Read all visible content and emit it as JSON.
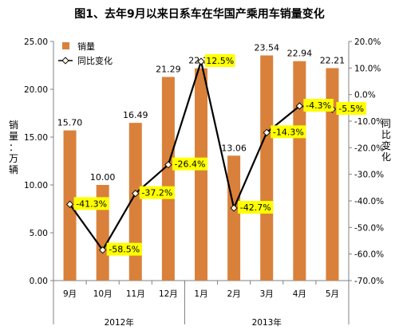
{
  "chart_data": {
    "type": "bar+line",
    "title": "图1、去年9月以来日系车在华国产乘用车销量变化",
    "categories": [
      "9月",
      "10月",
      "11月",
      "12月",
      "1月",
      "2月",
      "3月",
      "4月",
      "5月"
    ],
    "year_groups": [
      {
        "label": "2012年",
        "categories": [
          "9月",
          "10月",
          "11月",
          "12月"
        ]
      },
      {
        "label": "2013年",
        "categories": [
          "1月",
          "2月",
          "3月",
          "4月",
          "5月"
        ]
      }
    ],
    "series": [
      {
        "name": "销量",
        "type": "bar",
        "axis": "left",
        "color": "#d9813b",
        "values": [
          15.7,
          10.0,
          16.49,
          21.29,
          22.19,
          13.06,
          23.54,
          22.94,
          22.21
        ],
        "labels": [
          "15.70",
          "10.00",
          "16.49",
          "21.29",
          "22.19",
          "13.06",
          "23.54",
          "22.94",
          "22.21"
        ]
      },
      {
        "name": "同比变化",
        "type": "line",
        "axis": "right",
        "color": "#000000",
        "values": [
          -41.3,
          -58.5,
          -37.2,
          -26.4,
          12.5,
          -42.7,
          -14.3,
          -4.3,
          -5.5
        ],
        "labels": [
          "-41.3%",
          "-58.5%",
          "-37.2%",
          "-26.4%",
          "12.5%",
          "-42.7%",
          "-14.3%",
          "-4.3%",
          "-5.5%"
        ],
        "label_bg": "#ffff00"
      }
    ],
    "y_left": {
      "label": "销量：万辆",
      "range": [
        0,
        25
      ],
      "ticks": [
        "0.00",
        "5.00",
        "10.00",
        "15.00",
        "20.00",
        "25.00"
      ]
    },
    "y_right": {
      "label": "同比变化",
      "range": [
        -70,
        20
      ],
      "ticks": [
        "20.0%",
        "10.0%",
        "0.0%",
        "-10.0%",
        "-20.0%",
        "-30.0%",
        "-40.0%",
        "-50.0%",
        "-60.0%",
        "-70.0%"
      ]
    },
    "grid": false,
    "legend": "top-left"
  }
}
